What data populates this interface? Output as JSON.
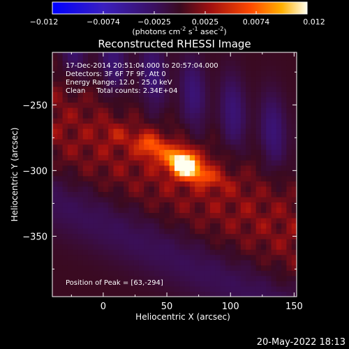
{
  "chart_data": {
    "type": "heatmap",
    "title": "Reconstructed RHESSI Image",
    "xlabel": "Heliocentric X (arcsec)",
    "ylabel": "Heliocentric Y (arcsec)",
    "xlim": [
      -40,
      152
    ],
    "ylim": [
      -396,
      -210
    ],
    "xticks": [
      0,
      50,
      100,
      150
    ],
    "yticks": [
      -250,
      -300,
      -350
    ],
    "colorbar": {
      "ticks": [
        "-0.012",
        "-0.0074",
        "-0.0025",
        "0.0025",
        "0.0074",
        "0.012"
      ],
      "range": [
        -0.012,
        0.012
      ],
      "unit_label": {
        "prefix": "(photons cm",
        "exp1": "-2",
        "mid1": " s",
        "exp2": "-1",
        "mid2": " asec",
        "exp3": "-2",
        "suffix": ")"
      }
    },
    "annotations": [
      "17-Dec-2014 20:51:04.000 to 20:57:04.000",
      "Detectors: 3F 6F 7F 9F, Att 0",
      "Energy Range: 12.0 - 25.0 keV",
      "Clean     Total counts: 2.34E+04"
    ],
    "peak_label": "Position of Peak = [63,-294]",
    "peak": [
      63,
      -294
    ],
    "sources": [
      {
        "x": 63,
        "y": -294,
        "sx": 9,
        "sy": 7,
        "amp": 0.0125,
        "rot": -25
      },
      {
        "x": 38,
        "y": -281,
        "sx": 9,
        "sy": 6,
        "amp": 0.0062,
        "rot": -30
      },
      {
        "x": 78,
        "y": -303,
        "sx": 13,
        "sy": 5,
        "amp": 0.0045,
        "rot": -20
      },
      {
        "x": 10,
        "y": -272,
        "sx": 8,
        "sy": 5,
        "amp": 0.002,
        "rot": -30
      }
    ],
    "background": {
      "ridge_level": 0.0035,
      "ridge_offset": -30,
      "ridge_slope": -0.45,
      "ridge_width": 38,
      "negative_level": -0.0035
    }
  },
  "footer_date": "20-May-2022 18:13"
}
